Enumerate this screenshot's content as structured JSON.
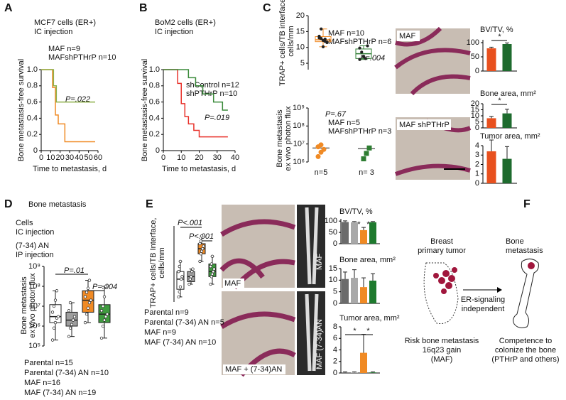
{
  "chart_data": [
    {
      "type": "line",
      "panel": "A",
      "title": "MCF7 cells (ER+)",
      "subtitle": "IC injection",
      "xlabel": "Time to metastasis, d",
      "ylabel": "Bone metastasis-free survival",
      "xlim": [
        0,
        60
      ],
      "xticks": [
        0,
        10,
        20,
        30,
        40,
        50,
        60
      ],
      "ylim": [
        0,
        1
      ],
      "yticks": [
        0,
        0.2,
        0.4,
        0.6,
        0.8,
        {
          "value": 1,
          "label": "1.0"
        }
      ],
      "annotations": [
        "P=.022"
      ],
      "series": [
        {
          "name": "MAF n=9",
          "color": "#f08a24",
          "x": [
            0,
            12,
            12,
            15,
            15,
            18,
            18,
            25,
            25,
            57
          ],
          "values": [
            1,
            1,
            0.78,
            0.78,
            0.44,
            0.44,
            0.33,
            0.33,
            0.11,
            0.11
          ]
        },
        {
          "name": "MAFshPTHrP n=10",
          "color": "#8db04a",
          "x": [
            0,
            13,
            13,
            16,
            16,
            57
          ],
          "values": [
            1,
            1,
            0.8,
            0.8,
            0.6,
            0.6
          ]
        }
      ]
    },
    {
      "type": "line",
      "panel": "B",
      "title": "BoM2 cells (ER+)",
      "subtitle": "IC injection",
      "xlabel": "Time to metastasis, d",
      "ylabel": "Bone metastasis-free survival",
      "xlim": [
        0,
        40
      ],
      "xticks": [
        0,
        10,
        20,
        30,
        40
      ],
      "ylim": [
        0,
        1
      ],
      "yticks": [
        0,
        0.2,
        0.4,
        0.6,
        0.8,
        {
          "value": 1,
          "label": "1.0"
        }
      ],
      "annotations": [
        "P=.019"
      ],
      "series": [
        {
          "name": "shControl n=12",
          "color": "#e8312a",
          "x": [
            0,
            8,
            8,
            10,
            10,
            12,
            12,
            14,
            14,
            17,
            17,
            20,
            20,
            36
          ],
          "values": [
            1,
            1,
            0.83,
            0.83,
            0.58,
            0.58,
            0.42,
            0.42,
            0.33,
            0.33,
            0.25,
            0.25,
            0.17,
            0.17
          ]
        },
        {
          "name": "shPTHrP n=10",
          "color": "#3a8a3a",
          "x": [
            0,
            14,
            14,
            18,
            18,
            22,
            22,
            28,
            28,
            33,
            33,
            36
          ],
          "values": [
            1,
            1,
            0.9,
            0.9,
            0.8,
            0.8,
            0.7,
            0.7,
            0.6,
            0.6,
            0.5,
            0.5
          ]
        }
      ]
    },
    {
      "type": "box",
      "panel": "C",
      "ylabel": [
        "TRAP+ cells/TB interface,",
        "cells/mm"
      ],
      "ylim": [
        3,
        20
      ],
      "yticks": [
        5,
        10,
        15,
        20
      ],
      "annotations": [
        "P=.004"
      ],
      "series": [
        {
          "name": "MAF n=10",
          "color": "#f08a24",
          "stats": {
            "min": 10.2,
            "q1": 11.8,
            "median": 12.4,
            "q3": 13.4,
            "max": 15.8
          },
          "points": [
            13.5,
            12.8,
            12.2,
            11.9,
            11.5,
            13,
            15.8,
            10.2,
            12.6,
            11.7
          ]
        },
        {
          "name": "MAFshPTHrP n=6",
          "color": "#2e7d32",
          "stats": {
            "min": 6.2,
            "q1": 6.5,
            "median": 8,
            "q3": 9.5,
            "max": 10.5
          },
          "points": [
            9.8,
            8.5,
            7.2,
            6.5,
            10.5,
            6.2
          ]
        }
      ]
    },
    {
      "type": "dot",
      "log": true,
      "ylabel": [
        "Bone metastasis",
        "ex vivo photon flux"
      ],
      "ylim": [
        1000000,
        1000000000
      ],
      "yticks": [
        {
          "value": 1000000,
          "label": "10⁶"
        },
        {
          "value": 10000000,
          "label": "10⁷"
        },
        {
          "value": 100000000,
          "label": "10⁸"
        },
        {
          "value": 1000000000,
          "label": "10⁹"
        }
      ],
      "categories": [
        "n=5",
        "n= 3"
      ],
      "annotations": [
        "P=.67"
      ],
      "series": [
        {
          "name": "MAF n=5",
          "color": "#f08a24",
          "marker": "circle",
          "mean": 6000000,
          "points": [
            2000000,
            3500000,
            5000000,
            7000000,
            9000000
          ]
        },
        {
          "name": "MAFshPTHrP n=3",
          "color": "#2e7d32",
          "marker": "square",
          "mean": 5500000,
          "points": [
            1500000,
            3000000,
            6000000
          ]
        }
      ]
    },
    {
      "type": "bar",
      "title": "BV/TV, %",
      "ylim": [
        0,
        110
      ],
      "yticks": [
        0,
        50,
        100
      ],
      "annotations": [
        "*"
      ],
      "values": [
        80,
        95
      ],
      "errors": [
        4,
        4
      ],
      "colors": [
        "#e8501e",
        "#1e6b2e"
      ]
    },
    {
      "type": "bar",
      "title": "Bone area, mm²",
      "ylim": [
        0,
        20
      ],
      "yticks": [
        0,
        5,
        10,
        15,
        20
      ],
      "annotations": [
        "*"
      ],
      "values": [
        8,
        12
      ],
      "errors": [
        1.5,
        3.5
      ],
      "colors": [
        "#e8501e",
        "#1e6b2e"
      ]
    },
    {
      "type": "bar",
      "title": "Tumor area, mm²",
      "ylim": [
        0,
        4
      ],
      "yticks": [
        0,
        1,
        2,
        3,
        4
      ],
      "values": [
        3.4,
        2.6
      ],
      "errors": [
        1.2,
        1.3
      ],
      "colors": [
        "#e8501e",
        "#1e6b2e"
      ]
    },
    {
      "type": "box",
      "panel": "D",
      "log": true,
      "title": "Bone metastasis",
      "notes": [
        "Cells",
        "IC injection",
        "(7-34) AN",
        "IP injection"
      ],
      "ylabel": [
        "Bone metastasis",
        "ex vivo photon flux"
      ],
      "ylim": [
        100000,
        1000000000
      ],
      "yticks": [
        {
          "value": 100000,
          "label": "10⁵"
        },
        {
          "value": 1000000,
          "label": "10⁶"
        },
        {
          "value": 10000000,
          "label": "10⁷"
        },
        {
          "value": 100000000,
          "label": "10⁸"
        },
        {
          "value": 1000000000,
          "label": "10⁹"
        }
      ],
      "annotations": [
        "P=.01",
        "P=.004"
      ],
      "series": [
        {
          "name": "Parental  n=15",
          "color": "#000000",
          "fill": "#ffffff",
          "stats": {
            "min": 200000,
            "q1": 1500000,
            "median": 3000000,
            "q3": 12000000,
            "max": 60000000
          },
          "points": [
            200000,
            800000,
            1500000,
            2500000,
            3000000,
            5000000,
            10000000,
            20000000,
            60000000
          ]
        },
        {
          "name": "Parental (7-34) AN n=10",
          "color": "#8a8a8a",
          "fill": "#9e9e9e",
          "stats": {
            "min": 300000,
            "q1": 1000000,
            "median": 2000000,
            "q3": 5000000,
            "max": 15000000
          },
          "points": [
            300000,
            800000,
            1200000,
            2000000,
            3000000,
            6000000,
            15000000
          ]
        },
        {
          "name": "MAF  n=16",
          "color": "#f08a24",
          "fill": "#f08a24",
          "stats": {
            "min": 1500000,
            "q1": 5000000,
            "median": 20000000,
            "q3": 60000000,
            "max": 200000000
          },
          "points": [
            1500000,
            4000000,
            8000000,
            15000000,
            20000000,
            30000000,
            50000000,
            80000000,
            200000000
          ]
        },
        {
          "name": "MAF (7-34) AN n=19",
          "color": "#1f6b1f",
          "fill": "#3f9b3f",
          "stats": {
            "min": 250000,
            "q1": 1500000,
            "median": 4000000,
            "q3": 12000000,
            "max": 100000000
          },
          "points": [
            250000,
            1000000,
            2000000,
            3000000,
            4000000,
            6000000,
            10000000,
            30000000,
            100000000
          ]
        }
      ]
    },
    {
      "type": "box",
      "panel": "E",
      "ylabel": [
        "TRAP+ cells/TB Interface,",
        "cells/mm"
      ],
      "ylim": [
        0,
        15
      ],
      "annotations": [
        "P<.001",
        "P<.001"
      ],
      "series": [
        {
          "name": "Parental  n=9",
          "color": "#000000",
          "fill": "#ffffff",
          "stats": {
            "min": 1,
            "q1": 2.5,
            "median": 4.5,
            "q3": 6,
            "max": 8
          },
          "points": [
            1,
            2,
            3,
            4.5,
            5,
            6,
            7,
            8
          ]
        },
        {
          "name": "Parental (7-34) AN n=5",
          "color": "#8a8a8a",
          "fill": "#9e9e9e",
          "stats": {
            "min": 3.5,
            "q1": 4,
            "median": 5,
            "q3": 6,
            "max": 6.5
          },
          "points": [
            3.5,
            4.5,
            5,
            6,
            6.5
          ]
        },
        {
          "name": "MAF  n=9",
          "color": "#f08a24",
          "fill": "#f08a24",
          "stats": {
            "min": 8,
            "q1": 9.5,
            "median": 10.5,
            "q3": 11.5,
            "max": 13
          },
          "points": [
            8,
            9.5,
            10,
            10.5,
            11,
            11.5,
            12,
            13
          ]
        },
        {
          "name": "MAF (7-34) AN n=10",
          "color": "#1f6b1f",
          "fill": "#3f9b3f",
          "stats": {
            "min": 3.5,
            "q1": 5,
            "median": 6,
            "q3": 7.5,
            "max": 9
          },
          "points": [
            3.5,
            5,
            5.5,
            6,
            6.5,
            7,
            7.5,
            9
          ]
        }
      ]
    },
    {
      "type": "bar",
      "title": "BV/TV, %",
      "ylim": [
        0,
        110
      ],
      "yticks": [
        0,
        50,
        100
      ],
      "annotations": [
        "*",
        "*"
      ],
      "values": [
        96,
        95,
        60,
        95
      ],
      "errors": [
        5,
        3,
        12,
        3
      ],
      "colors": [
        "#6b6b6b",
        "#a8a8a8",
        "#f08a24",
        "#1e7a2e"
      ]
    },
    {
      "type": "bar",
      "title": "Bone area, mm²",
      "ylim": [
        0,
        15
      ],
      "yticks": [
        0,
        5,
        10,
        15
      ],
      "values": [
        10.5,
        11,
        7,
        9.8
      ],
      "errors": [
        3,
        3.5,
        4,
        3
      ],
      "colors": [
        "#6b6b6b",
        "#a8a8a8",
        "#f08a24",
        "#1e7a2e"
      ]
    },
    {
      "type": "bar",
      "title": "Tumor area, mm²",
      "ylim": [
        0,
        8
      ],
      "yticks": [
        0,
        2,
        4,
        6,
        8
      ],
      "annotations": [
        "*",
        "*"
      ],
      "values": [
        0.1,
        0.1,
        3.5,
        0.1
      ],
      "errors": [
        0.1,
        0.1,
        3.2,
        0.1
      ],
      "colors": [
        "#6b6b6b",
        "#a8a8a8",
        "#f08a24",
        "#1e7a2e"
      ]
    }
  ],
  "images": [
    "MAF",
    "MAF shPTHrP",
    "MAF",
    "MAF + (7-34)AN",
    "MAF",
    "MAF (7-34)AN"
  ],
  "diagram": {
    "panel": "F",
    "tumor": [
      "Breast",
      "primary tumor"
    ],
    "bone": [
      "Bone",
      "metastasis"
    ],
    "arrow": [
      "ER-signaling",
      "independent"
    ],
    "risk": [
      "Risk bone metastasis",
      "16q23 gain",
      "(MAF)"
    ],
    "competence": [
      "Competence to",
      "colonize the bone",
      "(PTHrP and others)"
    ]
  }
}
